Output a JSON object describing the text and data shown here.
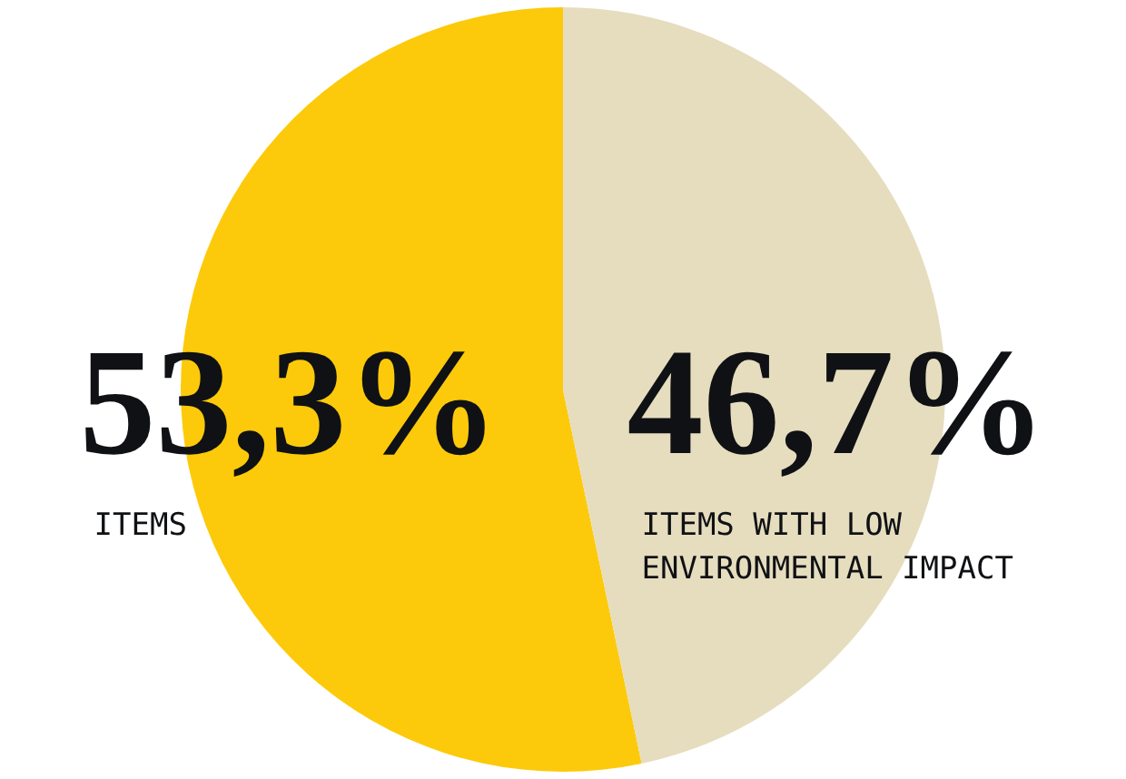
{
  "chart_data": {
    "type": "pie",
    "categories": [
      "ITEMS",
      "ITEMS WITH LOW ENVIRONMENTAL IMPACT"
    ],
    "values": [
      53.3,
      46.7
    ],
    "value_labels": [
      "53,3%",
      "46,7%"
    ],
    "colors": [
      "#fcca0a",
      "#e6ddbf"
    ],
    "legend": false
  }
}
